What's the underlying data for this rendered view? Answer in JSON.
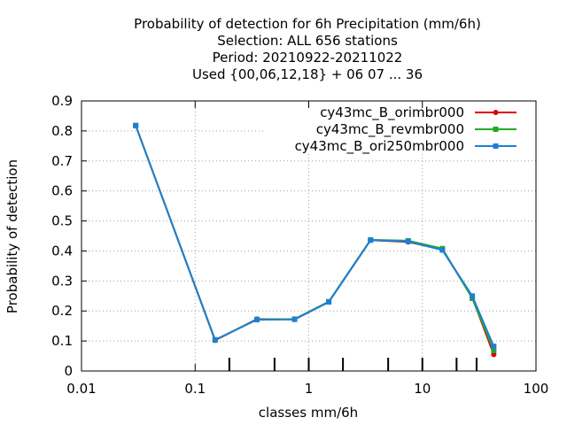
{
  "chart_data": {
    "type": "line",
    "title_lines": [
      "Probability of detection  for 6h Precipitation (mm/6h)",
      "Selection: ALL    656 stations",
      "Period: 20210922-20211022",
      "Used {00,06,12,18} + 06 07 ... 36"
    ],
    "xlabel": "classes mm/6h",
    "ylabel": "Probability of detection",
    "xscale": "log",
    "xlim": [
      0.01,
      100
    ],
    "ylim": [
      0,
      0.9
    ],
    "xticks": [
      {
        "value": 0.01,
        "label": "0.01"
      },
      {
        "value": 0.1,
        "label": "0.1"
      },
      {
        "value": 1,
        "label": "1"
      },
      {
        "value": 10,
        "label": "10"
      },
      {
        "value": 100,
        "label": "100"
      }
    ],
    "yticks": [
      {
        "value": 0,
        "label": "0"
      },
      {
        "value": 0.1,
        "label": "0.1"
      },
      {
        "value": 0.2,
        "label": "0.2"
      },
      {
        "value": 0.3,
        "label": "0.3"
      },
      {
        "value": 0.4,
        "label": "0.4"
      },
      {
        "value": 0.5,
        "label": "0.5"
      },
      {
        "value": 0.6,
        "label": "0.6"
      },
      {
        "value": 0.7,
        "label": "0.7"
      },
      {
        "value": 0.8,
        "label": "0.8"
      },
      {
        "value": 0.9,
        "label": "0.9"
      }
    ],
    "class_ticks": [
      0.2,
      0.5,
      1,
      2,
      5,
      10,
      20,
      30
    ],
    "grid": true,
    "legend_position": "top-right",
    "x": [
      0.03,
      0.15,
      0.35,
      0.75,
      1.5,
      3.5,
      7.5,
      15,
      27.5,
      42.5
    ],
    "series": [
      {
        "name": "cy43mc_B_orimbr000",
        "color": "#dd0000",
        "marker": "circle",
        "values": [
          0.818,
          0.102,
          0.173,
          0.172,
          0.23,
          0.436,
          0.43,
          0.405,
          0.245,
          0.055
        ]
      },
      {
        "name": "cy43mc_B_revmbr000",
        "color": "#22aa22",
        "marker": "square",
        "values": [
          0.818,
          0.103,
          0.172,
          0.173,
          0.231,
          0.437,
          0.434,
          0.408,
          0.242,
          0.068
        ]
      },
      {
        "name": "cy43mc_B_ori250mbr000",
        "color": "#1f7fd6",
        "marker": "square",
        "values": [
          0.818,
          0.104,
          0.171,
          0.172,
          0.23,
          0.436,
          0.432,
          0.403,
          0.25,
          0.082
        ]
      }
    ]
  }
}
